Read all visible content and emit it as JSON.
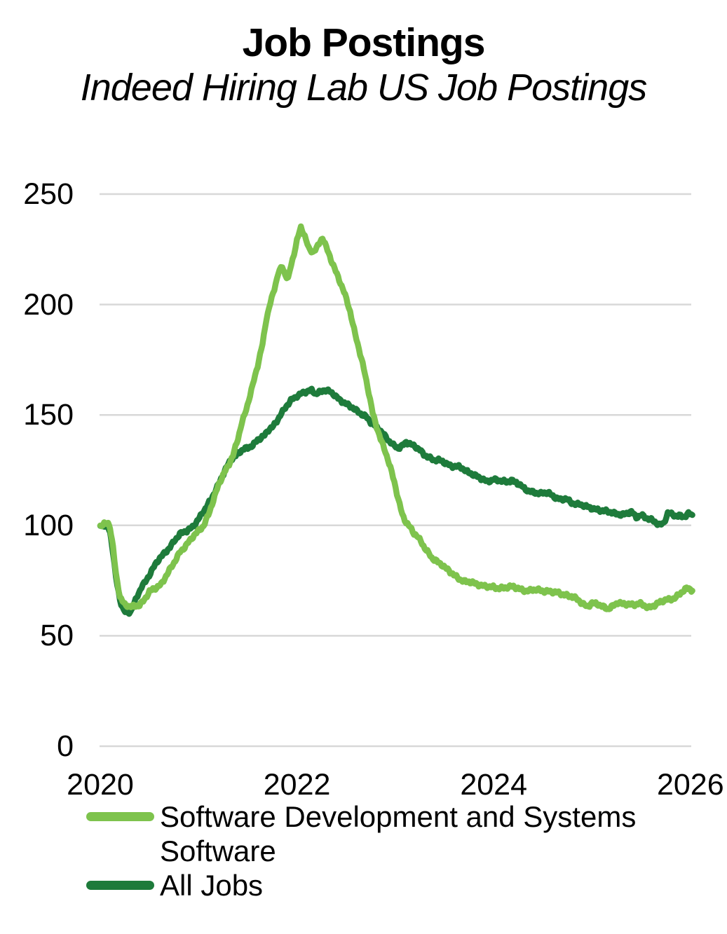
{
  "header": {
    "title": "Job Postings",
    "subtitle": "Indeed Hiring Lab US Job Postings"
  },
  "chart_data": {
    "type": "line",
    "title": "Job Postings",
    "subtitle": "Indeed Hiring Lab US Job Postings",
    "xlabel": "",
    "ylabel": "",
    "grid": "horizontal",
    "gridline_color": "#d8d8d8",
    "background_color": "#ffffff",
    "text_color": "#000000",
    "legend_position": "bottom-left",
    "x_ticks": [
      "2020",
      "2022",
      "2024",
      "2026"
    ],
    "x_tick_years": [
      2020,
      2022,
      2024,
      2026
    ],
    "xlim": [
      2020,
      2026.05
    ],
    "y_ticks": [
      250,
      200,
      150,
      100,
      50,
      0
    ],
    "ylim": [
      0,
      265
    ],
    "series": [
      {
        "id": "software",
        "name": "Software Development and Systems Software",
        "color": "#7ec34d",
        "points": [
          [
            2020.0,
            100.0
          ],
          [
            2020.04,
            100.6
          ],
          [
            2020.08,
            100.6
          ],
          [
            2020.1,
            99.0
          ],
          [
            2020.13,
            90.0
          ],
          [
            2020.16,
            78.0
          ],
          [
            2020.2,
            68.0
          ],
          [
            2020.25,
            64.0
          ],
          [
            2020.3,
            63.0
          ],
          [
            2020.35,
            63.3
          ],
          [
            2020.4,
            64.2
          ],
          [
            2020.45,
            66.5
          ],
          [
            2020.5,
            69.8
          ],
          [
            2020.56,
            71.5
          ],
          [
            2020.62,
            73.6
          ],
          [
            2020.68,
            78.0
          ],
          [
            2020.74,
            82.0
          ],
          [
            2020.81,
            88.0
          ],
          [
            2020.87,
            91.0
          ],
          [
            2020.93,
            94.0
          ],
          [
            2020.99,
            97.0
          ],
          [
            2021.05,
            100.0
          ],
          [
            2021.1,
            105.0
          ],
          [
            2021.15,
            111.0
          ],
          [
            2021.2,
            118.0
          ],
          [
            2021.26,
            124.0
          ],
          [
            2021.31,
            128.0
          ],
          [
            2021.35,
            131.5
          ],
          [
            2021.4,
            139.0
          ],
          [
            2021.44,
            146.5
          ],
          [
            2021.47,
            150.5
          ],
          [
            2021.51,
            157.0
          ],
          [
            2021.55,
            163.5
          ],
          [
            2021.6,
            172.0
          ],
          [
            2021.65,
            182.0
          ],
          [
            2021.69,
            194.0
          ],
          [
            2021.73,
            201.0
          ],
          [
            2021.77,
            207.0
          ],
          [
            2021.81,
            214.0
          ],
          [
            2021.85,
            217.0
          ],
          [
            2021.88,
            213.5
          ],
          [
            2021.91,
            212.0
          ],
          [
            2021.94,
            218.0
          ],
          [
            2021.97,
            223.0
          ],
          [
            2022.0,
            229.0
          ],
          [
            2022.04,
            234.5
          ],
          [
            2022.08,
            231.0
          ],
          [
            2022.12,
            225.5
          ],
          [
            2022.16,
            224.0
          ],
          [
            2022.2,
            225.5
          ],
          [
            2022.26,
            230.0
          ],
          [
            2022.31,
            224.6
          ],
          [
            2022.37,
            218.0
          ],
          [
            2022.43,
            211.0
          ],
          [
            2022.49,
            204.0
          ],
          [
            2022.54,
            197.0
          ],
          [
            2022.58,
            189.0
          ],
          [
            2022.63,
            180.0
          ],
          [
            2022.68,
            170.5
          ],
          [
            2022.73,
            160.0
          ],
          [
            2022.77,
            151.0
          ],
          [
            2022.81,
            145.0
          ],
          [
            2022.85,
            139.0
          ],
          [
            2022.9,
            133.0
          ],
          [
            2022.95,
            126.0
          ],
          [
            2022.99,
            120.0
          ],
          [
            2023.03,
            112.0
          ],
          [
            2023.07,
            105.0
          ],
          [
            2023.11,
            101.0
          ],
          [
            2023.15,
            99.0
          ],
          [
            2023.19,
            96.5
          ],
          [
            2023.22,
            95.5
          ],
          [
            2023.26,
            93.0
          ],
          [
            2023.3,
            89.5
          ],
          [
            2023.34,
            87.0
          ],
          [
            2023.37,
            85.2
          ],
          [
            2023.42,
            84.0
          ],
          [
            2023.47,
            82.5
          ],
          [
            2023.52,
            80.2
          ],
          [
            2023.57,
            78.2
          ],
          [
            2023.62,
            76.8
          ],
          [
            2023.67,
            75.5
          ],
          [
            2023.71,
            74.6
          ],
          [
            2023.76,
            74.1
          ],
          [
            2023.81,
            73.6
          ],
          [
            2023.86,
            73.2
          ],
          [
            2023.91,
            72.6
          ],
          [
            2023.96,
            72.1
          ],
          [
            2024.02,
            71.5
          ],
          [
            2024.08,
            71.8
          ],
          [
            2024.14,
            72.1
          ],
          [
            2024.2,
            72.0
          ],
          [
            2024.26,
            71.2
          ],
          [
            2024.31,
            70.8
          ],
          [
            2024.36,
            70.4
          ],
          [
            2024.42,
            70.7
          ],
          [
            2024.48,
            70.5
          ],
          [
            2024.54,
            70.4
          ],
          [
            2024.6,
            69.8
          ],
          [
            2024.66,
            69.2
          ],
          [
            2024.73,
            68.6
          ],
          [
            2024.79,
            68.0
          ],
          [
            2024.85,
            66.2
          ],
          [
            2024.9,
            64.6
          ],
          [
            2024.95,
            63.4
          ],
          [
            2025.0,
            65.0
          ],
          [
            2025.05,
            64.2
          ],
          [
            2025.1,
            63.2
          ],
          [
            2025.16,
            62.4
          ],
          [
            2025.21,
            63.6
          ],
          [
            2025.26,
            64.8
          ],
          [
            2025.31,
            64.2
          ],
          [
            2025.36,
            64.6
          ],
          [
            2025.42,
            64.2
          ],
          [
            2025.48,
            64.4
          ],
          [
            2025.53,
            63.6
          ],
          [
            2025.57,
            62.8
          ],
          [
            2025.61,
            63.6
          ],
          [
            2025.66,
            64.5
          ],
          [
            2025.72,
            65.6
          ],
          [
            2025.78,
            66.5
          ],
          [
            2025.84,
            67.3
          ],
          [
            2025.88,
            68.5
          ],
          [
            2025.92,
            69.8
          ],
          [
            2025.96,
            71.2
          ],
          [
            2026.0,
            71.3
          ],
          [
            2026.02,
            70.4
          ]
        ]
      },
      {
        "id": "all-jobs",
        "name": "All Jobs",
        "color": "#1e7b3b",
        "points": [
          [
            2020.0,
            100.0
          ],
          [
            2020.05,
            100.0
          ],
          [
            2020.08,
            99.6
          ],
          [
            2020.1,
            97.0
          ],
          [
            2020.13,
            88.0
          ],
          [
            2020.16,
            76.0
          ],
          [
            2020.2,
            66.0
          ],
          [
            2020.24,
            61.5
          ],
          [
            2020.28,
            60.3
          ],
          [
            2020.32,
            62.0
          ],
          [
            2020.36,
            66.0
          ],
          [
            2020.39,
            69.0
          ],
          [
            2020.42,
            72.0
          ],
          [
            2020.46,
            74.6
          ],
          [
            2020.51,
            78.7
          ],
          [
            2020.57,
            83.0
          ],
          [
            2020.64,
            86.6
          ],
          [
            2020.71,
            90.4
          ],
          [
            2020.75,
            93.0
          ],
          [
            2020.81,
            95.8
          ],
          [
            2020.88,
            97.5
          ],
          [
            2020.95,
            100.0
          ],
          [
            2021.02,
            104.0
          ],
          [
            2021.07,
            107.5
          ],
          [
            2021.12,
            111.5
          ],
          [
            2021.19,
            117.5
          ],
          [
            2021.24,
            122.0
          ],
          [
            2021.3,
            127.5
          ],
          [
            2021.33,
            130.0
          ],
          [
            2021.4,
            132.6
          ],
          [
            2021.45,
            134.2
          ],
          [
            2021.5,
            134.8
          ],
          [
            2021.55,
            136.4
          ],
          [
            2021.6,
            139.0
          ],
          [
            2021.67,
            140.5
          ],
          [
            2021.71,
            143.0
          ],
          [
            2021.76,
            145.0
          ],
          [
            2021.83,
            150.0
          ],
          [
            2021.88,
            153.0
          ],
          [
            2021.95,
            157.0
          ],
          [
            2022.0,
            158.8
          ],
          [
            2022.05,
            160.0
          ],
          [
            2022.1,
            160.4
          ],
          [
            2022.15,
            161.0
          ],
          [
            2022.19,
            159.6
          ],
          [
            2022.24,
            160.8
          ],
          [
            2022.28,
            161.4
          ],
          [
            2022.33,
            160.4
          ],
          [
            2022.38,
            159.0
          ],
          [
            2022.43,
            157.2
          ],
          [
            2022.47,
            156.0
          ],
          [
            2022.53,
            154.0
          ],
          [
            2022.6,
            152.0
          ],
          [
            2022.66,
            150.5
          ],
          [
            2022.7,
            149.5
          ],
          [
            2022.75,
            146.5
          ],
          [
            2022.8,
            144.5
          ],
          [
            2022.84,
            143.4
          ],
          [
            2022.89,
            141.0
          ],
          [
            2022.94,
            138.0
          ],
          [
            2022.98,
            136.0
          ],
          [
            2023.03,
            134.8
          ],
          [
            2023.07,
            136.2
          ],
          [
            2023.11,
            138.0
          ],
          [
            2023.16,
            136.5
          ],
          [
            2023.2,
            135.5
          ],
          [
            2023.25,
            134.0
          ],
          [
            2023.29,
            132.3
          ],
          [
            2023.34,
            131.0
          ],
          [
            2023.39,
            129.4
          ],
          [
            2023.44,
            129.3
          ],
          [
            2023.48,
            129.0
          ],
          [
            2023.53,
            128.0
          ],
          [
            2023.57,
            126.9
          ],
          [
            2023.62,
            126.5
          ],
          [
            2023.67,
            126.0
          ],
          [
            2023.72,
            124.8
          ],
          [
            2023.77,
            123.7
          ],
          [
            2023.82,
            122.3
          ],
          [
            2023.86,
            121.2
          ],
          [
            2023.93,
            120.0
          ],
          [
            2024.0,
            121.0
          ],
          [
            2024.04,
            120.3
          ],
          [
            2024.08,
            119.9
          ],
          [
            2024.13,
            119.6
          ],
          [
            2024.18,
            120.6
          ],
          [
            2024.23,
            119.5
          ],
          [
            2024.27,
            118.0
          ],
          [
            2024.31,
            116.5
          ],
          [
            2024.34,
            115.8
          ],
          [
            2024.41,
            115.2
          ],
          [
            2024.48,
            114.2
          ],
          [
            2024.55,
            114.8
          ],
          [
            2024.59,
            113.8
          ],
          [
            2024.64,
            112.6
          ],
          [
            2024.69,
            111.5
          ],
          [
            2024.74,
            111.9
          ],
          [
            2024.78,
            110.4
          ],
          [
            2024.83,
            110.0
          ],
          [
            2024.88,
            109.5
          ],
          [
            2024.94,
            108.3
          ],
          [
            2024.98,
            107.9
          ],
          [
            2025.07,
            107.2
          ],
          [
            2025.13,
            106.3
          ],
          [
            2025.2,
            105.7
          ],
          [
            2025.28,
            105.2
          ],
          [
            2025.34,
            104.9
          ],
          [
            2025.4,
            106.0
          ],
          [
            2025.45,
            103.8
          ],
          [
            2025.5,
            105.0
          ],
          [
            2025.55,
            103.2
          ],
          [
            2025.59,
            102.5
          ],
          [
            2025.64,
            101.5
          ],
          [
            2025.69,
            100.5
          ],
          [
            2025.73,
            101.2
          ],
          [
            2025.77,
            105.4
          ],
          [
            2025.82,
            104.7
          ],
          [
            2025.86,
            104.0
          ],
          [
            2025.9,
            104.6
          ],
          [
            2025.94,
            104.1
          ],
          [
            2025.98,
            105.2
          ],
          [
            2026.02,
            104.7
          ]
        ]
      }
    ]
  },
  "legend": {
    "items": [
      {
        "label": "Software Development and Systems Software",
        "color": "#7ec34d"
      },
      {
        "label": "All Jobs",
        "color": "#1e7b3b"
      }
    ]
  }
}
